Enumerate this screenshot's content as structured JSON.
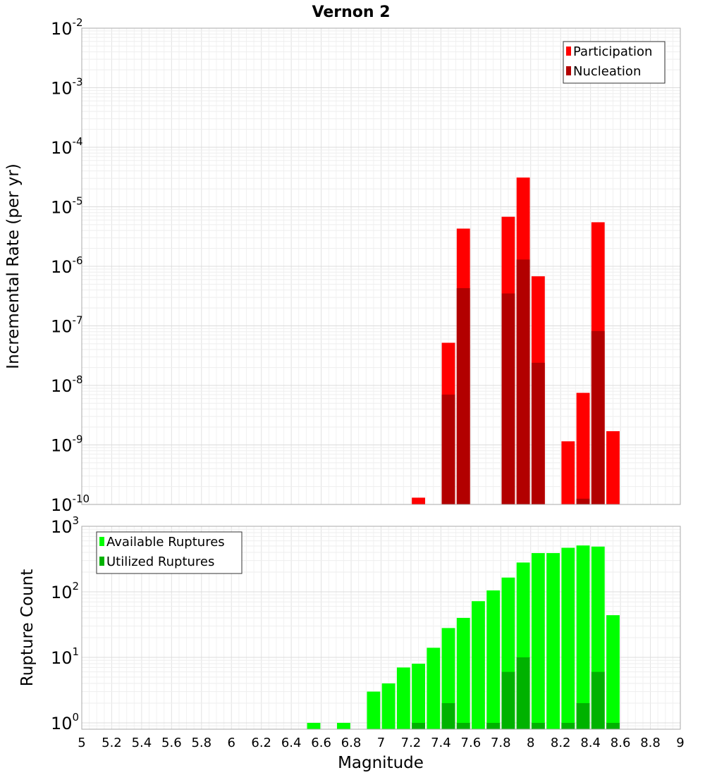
{
  "chart_data": [
    {
      "type": "bar",
      "title": "Vernon 2",
      "xlabel": "Magnitude",
      "ylabel": "Incremental Rate (per yr)",
      "yscale": "log",
      "ylim": [
        1e-10,
        0.01
      ],
      "xlim": [
        5,
        9
      ],
      "bin_width": 0.1,
      "x_ticks": [
        "5",
        "5.2",
        "5.4",
        "5.6",
        "5.8",
        "6",
        "6.2",
        "6.4",
        "6.6",
        "6.8",
        "7",
        "7.2",
        "7.4",
        "7.6",
        "7.8",
        "8",
        "8.2",
        "8.4",
        "8.6",
        "8.8",
        "9"
      ],
      "y_tick_exponents": [
        "-10",
        "-9",
        "-8",
        "-7",
        "-6",
        "-5",
        "-4",
        "-3",
        "-2"
      ],
      "grid": true,
      "legend_position": "top-right",
      "series": [
        {
          "name": "Participation",
          "color": "#ff0000",
          "points": [
            [
              7.25,
              1.3e-10
            ],
            [
              7.45,
              5.2e-08
            ],
            [
              7.55,
              4.3e-06
            ],
            [
              7.85,
              6.8e-06
            ],
            [
              7.95,
              3.1e-05
            ],
            [
              8.05,
              6.8e-07
            ],
            [
              8.25,
              1.15e-09
            ],
            [
              8.35,
              7.5e-09
            ],
            [
              8.45,
              5.5e-06
            ],
            [
              8.55,
              1.7e-09
            ]
          ]
        },
        {
          "name": "Nucleation",
          "color": "#b20000",
          "points": [
            [
              7.45,
              7e-09
            ],
            [
              7.55,
              4.3e-07
            ],
            [
              7.85,
              3.5e-07
            ],
            [
              7.95,
              1.3e-06
            ],
            [
              8.05,
              2.4e-08
            ],
            [
              8.35,
              1.25e-10
            ],
            [
              8.45,
              8.2e-08
            ]
          ]
        }
      ]
    },
    {
      "type": "bar",
      "xlabel": "Magnitude",
      "ylabel": "Rupture Count",
      "yscale": "log",
      "ylim": [
        0.8,
        1000
      ],
      "xlim": [
        5,
        9
      ],
      "bin_width": 0.1,
      "x_ticks": [
        "5",
        "5.2",
        "5.4",
        "5.6",
        "5.8",
        "6",
        "6.2",
        "6.4",
        "6.6",
        "6.8",
        "7",
        "7.2",
        "7.4",
        "7.6",
        "7.8",
        "8",
        "8.2",
        "8.4",
        "8.6",
        "8.8",
        "9"
      ],
      "y_tick_exponents": [
        "0",
        "1",
        "2",
        "3"
      ],
      "grid": true,
      "legend_position": "top-left",
      "series": [
        {
          "name": "Available Ruptures",
          "color": "#00ff00",
          "points": [
            [
              6.55,
              1
            ],
            [
              6.75,
              1
            ],
            [
              6.95,
              3
            ],
            [
              7.05,
              4
            ],
            [
              7.15,
              7
            ],
            [
              7.25,
              8
            ],
            [
              7.35,
              14
            ],
            [
              7.45,
              28
            ],
            [
              7.55,
              40
            ],
            [
              7.65,
              72
            ],
            [
              7.75,
              105
            ],
            [
              7.85,
              165
            ],
            [
              7.95,
              280
            ],
            [
              8.05,
              390
            ],
            [
              8.15,
              390
            ],
            [
              8.25,
              470
            ],
            [
              8.35,
              510
            ],
            [
              8.45,
              490
            ],
            [
              8.55,
              44
            ]
          ]
        },
        {
          "name": "Utilized Ruptures",
          "color": "#00b200",
          "points": [
            [
              7.25,
              1
            ],
            [
              7.45,
              2
            ],
            [
              7.55,
              1
            ],
            [
              7.75,
              1
            ],
            [
              7.85,
              6
            ],
            [
              7.95,
              10
            ],
            [
              8.05,
              1
            ],
            [
              8.25,
              1
            ],
            [
              8.35,
              2
            ],
            [
              8.45,
              6
            ],
            [
              8.55,
              1
            ]
          ]
        }
      ]
    }
  ]
}
